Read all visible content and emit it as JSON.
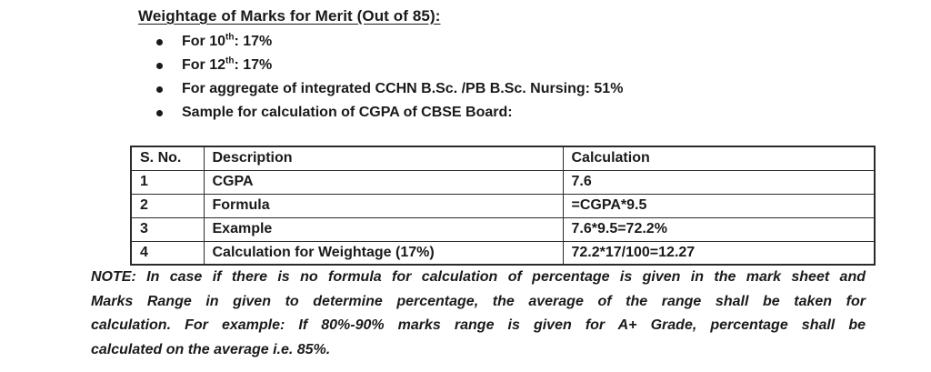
{
  "page": {
    "background_color": "#ffffff",
    "text_color": "#1a1a1a",
    "border_color": "#2b2b2b"
  },
  "heading": {
    "text": "Weightage of Marks for Merit (Out of 85):"
  },
  "bullets": [
    {
      "pre": "For 10",
      "sup": "th",
      "post": ": 17%"
    },
    {
      "pre": "For 12",
      "sup": "th",
      "post": ": 17%"
    },
    {
      "pre": "For aggregate of integrated CCHN B.Sc. /PB B.Sc. Nursing: 51%",
      "sup": "",
      "post": ""
    },
    {
      "pre": "Sample for calculation of CGPA of CBSE Board:",
      "sup": "",
      "post": ""
    }
  ],
  "table": {
    "headers": [
      "S. No.",
      "Description",
      "Calculation"
    ],
    "rows": [
      [
        "1",
        "CGPA",
        "7.6"
      ],
      [
        "2",
        "Formula",
        "=CGPA*9.5"
      ],
      [
        "3",
        "Example",
        "7.6*9.5=72.2%"
      ],
      [
        "4",
        "Calculation for Weightage (17%)",
        "72.2*17/100=12.27"
      ]
    ]
  },
  "note": {
    "lines": [
      "NOTE: In case if there is no formula for calculation of percentage is given in the mark sheet and",
      "Marks Range in given to determine percentage, the average of the range shall be taken for",
      "calculation. For example: If 80%-90% marks range is given for A+ Grade, percentage shall be",
      "calculated on the average i.e. 85%."
    ]
  }
}
